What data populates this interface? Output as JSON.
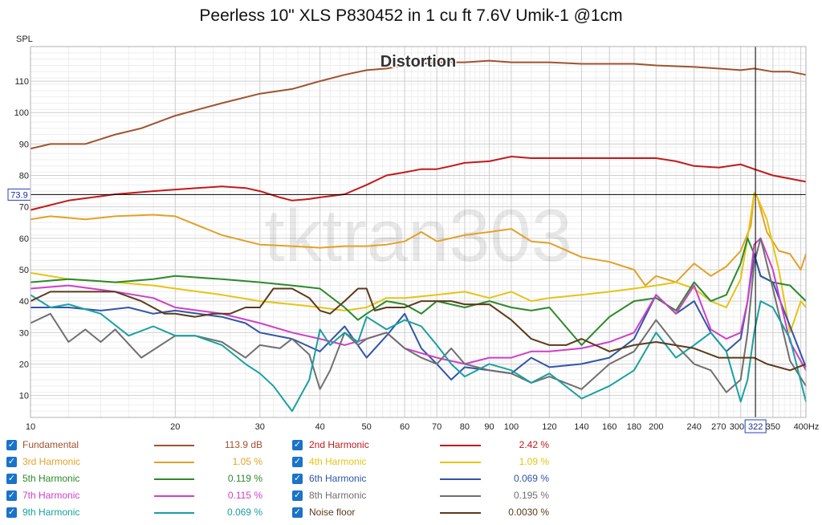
{
  "title": "Peerless 10\" XLS P830452 in 1 cu ft 7.6V Umik-1 @1cm",
  "chart_data": {
    "type": "line",
    "title": "Peerless 10\" XLS P830452 in 1 cu ft 7.6V Umik-1 @1cm",
    "annotation": "Distortion",
    "watermark": "tktran303",
    "ylabel": "SPL",
    "xlabel": "Hz",
    "x_scale": "log",
    "xlim": [
      10,
      410
    ],
    "ylim": [
      3,
      121
    ],
    "grid": true,
    "x_ticks": [
      10,
      20,
      30,
      40,
      50,
      60,
      70,
      80,
      90,
      100,
      120,
      140,
      160,
      180,
      200,
      240,
      270,
      300,
      350,
      400
    ],
    "x_tick_labels": [
      "10",
      "20",
      "30",
      "40",
      "50",
      "60",
      "70",
      "80",
      "90",
      "100",
      "120",
      "140",
      "160",
      "180",
      "200",
      "240",
      "270",
      "300",
      "350",
      "400Hz"
    ],
    "y_ticks": [
      10,
      20,
      30,
      40,
      50,
      60,
      70,
      80,
      90,
      100,
      110
    ],
    "cursor": {
      "x": 322,
      "x_label": "322",
      "y": 73.9,
      "y_label": "73.9"
    },
    "series": [
      {
        "name": "Fundamental",
        "color": "#a0522d",
        "value_label": "113.9 dB",
        "x": [
          10,
          11,
          13,
          15,
          17,
          20,
          25,
          30,
          35,
          40,
          45,
          50,
          55,
          60,
          70,
          80,
          90,
          100,
          120,
          140,
          160,
          180,
          200,
          240,
          270,
          300,
          320,
          350,
          380,
          410
        ],
        "y": [
          88.5,
          90,
          90,
          93,
          95,
          99,
          103,
          106,
          107.5,
          110,
          112,
          113.5,
          114,
          115,
          116,
          116,
          116.5,
          116,
          116,
          115.5,
          115.5,
          115.5,
          115,
          114.5,
          114,
          113.5,
          114,
          113,
          113,
          112
        ]
      },
      {
        "name": "2nd Harmonic",
        "color": "#c41818",
        "value_label": "2.42 %",
        "x": [
          10,
          12,
          15,
          18,
          20,
          25,
          28,
          30,
          33,
          35,
          38,
          40,
          45,
          50,
          55,
          60,
          65,
          70,
          75,
          80,
          90,
          100,
          110,
          120,
          140,
          160,
          180,
          200,
          220,
          240,
          270,
          300,
          320,
          350,
          410
        ],
        "y": [
          69,
          72,
          74,
          75,
          75.5,
          76.5,
          76,
          75,
          73,
          72,
          72.5,
          73,
          74,
          77,
          80,
          81,
          82,
          82,
          83,
          84,
          84.5,
          86,
          85.5,
          85.5,
          85.5,
          85.5,
          85.5,
          85.5,
          84.5,
          83,
          82.5,
          83.5,
          82,
          80,
          78
        ]
      },
      {
        "name": "3rd Harmonic",
        "color": "#e3a127",
        "value_label": "1.05 %",
        "x": [
          10,
          11,
          13,
          15,
          18,
          20,
          25,
          30,
          35,
          40,
          45,
          50,
          55,
          60,
          65,
          70,
          80,
          90,
          100,
          110,
          120,
          140,
          160,
          180,
          190,
          200,
          220,
          240,
          260,
          280,
          300,
          315,
          320,
          325,
          340,
          360,
          380,
          400,
          410
        ],
        "y": [
          66,
          67,
          66,
          67,
          67.5,
          67,
          61,
          58,
          57.5,
          57,
          57.5,
          57.5,
          58,
          59,
          62,
          59,
          61,
          62,
          63,
          59,
          58.5,
          54,
          52.5,
          50,
          45,
          48,
          46,
          52,
          48,
          51,
          56,
          64,
          74.5,
          73,
          62,
          56,
          55,
          50,
          55
        ]
      },
      {
        "name": "4th Harmonic",
        "color": "#e5c414",
        "value_label": "1.09 %",
        "x": [
          10,
          12,
          15,
          18,
          20,
          25,
          30,
          35,
          40,
          45,
          50,
          55,
          60,
          70,
          80,
          90,
          100,
          110,
          120,
          140,
          160,
          180,
          200,
          220,
          240,
          260,
          280,
          300,
          310,
          320,
          325,
          340,
          360,
          380,
          400,
          410
        ],
        "y": [
          49,
          47,
          46,
          45,
          44,
          42,
          40,
          39,
          38,
          37,
          38,
          41,
          41,
          42,
          43,
          41,
          43,
          40,
          41,
          42,
          43,
          44,
          45,
          46,
          44,
          40,
          38,
          47,
          60,
          74.5,
          73,
          66,
          50,
          30,
          40,
          38
        ]
      },
      {
        "name": "5th Harmonic",
        "color": "#2a8a2a",
        "value_label": "0.119 %",
        "x": [
          10,
          12,
          15,
          18,
          20,
          25,
          30,
          35,
          40,
          45,
          48,
          50,
          55,
          60,
          65,
          70,
          80,
          90,
          100,
          110,
          120,
          140,
          160,
          180,
          200,
          220,
          240,
          260,
          280,
          300,
          310,
          320,
          330,
          350,
          380,
          410
        ],
        "y": [
          46,
          47,
          46,
          47,
          48,
          47,
          46,
          45,
          44,
          38,
          34,
          36,
          40,
          39,
          36,
          40,
          38,
          40,
          38,
          37,
          38,
          26,
          35,
          40,
          41,
          37,
          46,
          40,
          42,
          52,
          60,
          55,
          48,
          46,
          45,
          40
        ]
      },
      {
        "name": "6th Harmonic",
        "color": "#3055a8",
        "value_label": "0.069 %",
        "x": [
          10,
          12,
          14,
          16,
          18,
          20,
          25,
          28,
          30,
          35,
          40,
          45,
          50,
          55,
          60,
          65,
          70,
          75,
          80,
          90,
          100,
          110,
          120,
          140,
          160,
          180,
          200,
          220,
          240,
          260,
          280,
          300,
          310,
          320,
          330,
          350,
          380,
          410
        ],
        "y": [
          38,
          38,
          37,
          38,
          36,
          37,
          35,
          33,
          30,
          28,
          24,
          32,
          22,
          29,
          36,
          25,
          20,
          15,
          19,
          18,
          17,
          22,
          19,
          20,
          22,
          28,
          42,
          36,
          40,
          30,
          24,
          28,
          40,
          55,
          48,
          46,
          32,
          19
        ]
      },
      {
        "name": "7th Harmonic",
        "color": "#cf3fc9",
        "value_label": "0.115 %",
        "x": [
          10,
          12,
          15,
          18,
          20,
          25,
          30,
          35,
          40,
          45,
          50,
          55,
          60,
          70,
          80,
          90,
          100,
          110,
          120,
          140,
          160,
          180,
          200,
          220,
          240,
          260,
          280,
          300,
          310,
          320,
          330,
          350,
          380,
          410
        ],
        "y": [
          44,
          45,
          43,
          41,
          38,
          36,
          33,
          30,
          28,
          26,
          28,
          30,
          25,
          22,
          20,
          22,
          22,
          24,
          24,
          25,
          27,
          30,
          42,
          36,
          45,
          31,
          28,
          30,
          40,
          58,
          60,
          50,
          27,
          18
        ]
      },
      {
        "name": "8th Harmonic",
        "color": "#707070",
        "value_label": "0.195 %",
        "x": [
          10,
          11,
          12,
          13,
          14,
          15,
          17,
          20,
          22,
          25,
          28,
          30,
          33,
          35,
          38,
          40,
          42,
          45,
          48,
          50,
          55,
          60,
          65,
          70,
          75,
          80,
          90,
          100,
          110,
          120,
          140,
          160,
          180,
          200,
          220,
          240,
          260,
          280,
          300,
          310,
          320,
          330,
          350,
          380,
          410
        ],
        "y": [
          33,
          36,
          27,
          31,
          27,
          31,
          22,
          29,
          29,
          27,
          22,
          26,
          25,
          28,
          23,
          12,
          18,
          30,
          26,
          28,
          30,
          25,
          22,
          20,
          25,
          20,
          18,
          17,
          14,
          16,
          12,
          20,
          24,
          34,
          26,
          20,
          18,
          11,
          15,
          30,
          52,
          60,
          44,
          21,
          13
        ]
      },
      {
        "name": "9th Harmonic",
        "color": "#1aa0a0",
        "value_label": "0.069 %",
        "x": [
          10,
          11,
          12,
          14,
          16,
          18,
          20,
          22,
          25,
          28,
          30,
          32,
          35,
          38,
          40,
          42,
          45,
          48,
          50,
          55,
          60,
          65,
          70,
          75,
          80,
          90,
          100,
          110,
          120,
          140,
          160,
          180,
          200,
          220,
          240,
          260,
          280,
          300,
          310,
          320,
          330,
          350,
          380,
          410
        ],
        "y": [
          42,
          38,
          39,
          36,
          29,
          32,
          29,
          29,
          26,
          20,
          17,
          13,
          5,
          15,
          31,
          26,
          30,
          27,
          35,
          31,
          34,
          32,
          26,
          20,
          16,
          20,
          18,
          14,
          17,
          9,
          13,
          18,
          30,
          22,
          26,
          30,
          24,
          8,
          15,
          30,
          40,
          38,
          28,
          8
        ]
      },
      {
        "name": "Noise floor",
        "color": "#5c3a1a",
        "value_label": "0.0030 %",
        "x": [
          10,
          11,
          15,
          17,
          19,
          20,
          22,
          24,
          26,
          28,
          30,
          32,
          35,
          38,
          40,
          42,
          45,
          48,
          50,
          52,
          55,
          60,
          65,
          70,
          75,
          80,
          90,
          100,
          110,
          120,
          130,
          140,
          160,
          180,
          200,
          240,
          270,
          300,
          320,
          340,
          380,
          410
        ],
        "y": [
          40,
          43,
          43,
          40,
          36,
          36,
          35,
          36,
          36,
          38,
          38,
          44,
          44,
          41,
          37,
          36,
          40,
          44,
          44,
          37,
          38,
          38,
          40,
          40,
          40,
          39,
          39,
          34,
          28,
          26,
          26,
          28,
          24,
          26,
          27,
          25,
          22,
          22,
          22,
          20,
          18,
          20
        ]
      }
    ]
  },
  "legend": {
    "items": [
      {
        "label": "Fundamental",
        "value": "113.9 dB",
        "color": "#a0522d",
        "checked": true
      },
      {
        "label": "2nd Harmonic",
        "value": "2.42 %",
        "color": "#c41818",
        "checked": true
      },
      {
        "label": "3rd Harmonic",
        "value": "1.05 %",
        "color": "#e3a127",
        "checked": true
      },
      {
        "label": "4th Harmonic",
        "value": "1.09 %",
        "color": "#e5c414",
        "checked": true
      },
      {
        "label": "5th Harmonic",
        "value": "0.119 %",
        "color": "#2a8a2a",
        "checked": true
      },
      {
        "label": "6th Harmonic",
        "value": "0.069 %",
        "color": "#3055a8",
        "checked": true
      },
      {
        "label": "7th Harmonic",
        "value": "0.115 %",
        "color": "#cf3fc9",
        "checked": true
      },
      {
        "label": "8th Harmonic",
        "value": "0.195 %",
        "color": "#707070",
        "checked": true
      },
      {
        "label": "9th Harmonic",
        "value": "0.069 %",
        "color": "#1aa0a0",
        "checked": true
      },
      {
        "label": "Noise floor",
        "value": "0.0030 %",
        "color": "#5c3a1a",
        "checked": true
      }
    ]
  }
}
